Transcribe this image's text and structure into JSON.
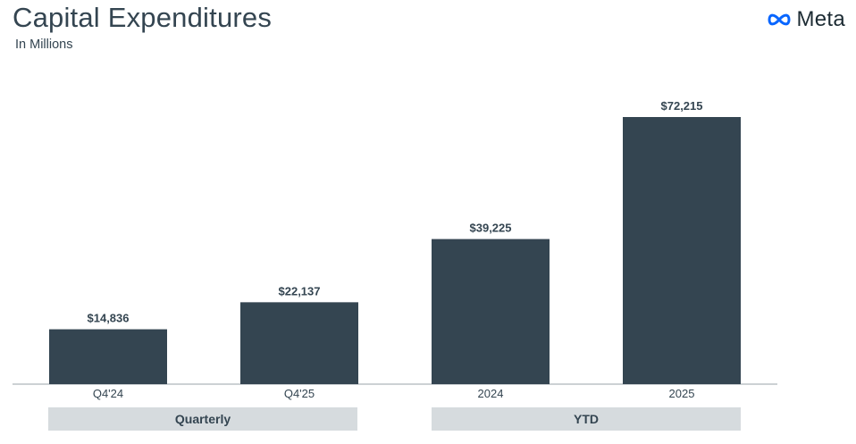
{
  "header": {
    "title": "Capital Expenditures",
    "subtitle": "In Millions",
    "logo_text": "Meta",
    "logo_icon": "meta-infinity-icon",
    "logo_color": "#0866ff"
  },
  "colors": {
    "bar": "#344551",
    "group_box": "#d6dbde",
    "text": "#344551"
  },
  "chart_data": {
    "type": "bar",
    "title": "Capital Expenditures",
    "subtitle": "In Millions",
    "categories": [
      "Q4'24",
      "Q4'25",
      "2024",
      "2025"
    ],
    "values": [
      14836,
      22137,
      39225,
      72215
    ],
    "value_labels": [
      "$14,836",
      "$22,137",
      "$39,225",
      "$72,215"
    ],
    "groups": [
      {
        "label": "Quarterly",
        "categories": [
          "Q4'24",
          "Q4'25"
        ]
      },
      {
        "label": "YTD",
        "categories": [
          "2024",
          "2025"
        ]
      }
    ],
    "ylim": [
      0,
      72215
    ],
    "grid": false,
    "legend": "none"
  }
}
